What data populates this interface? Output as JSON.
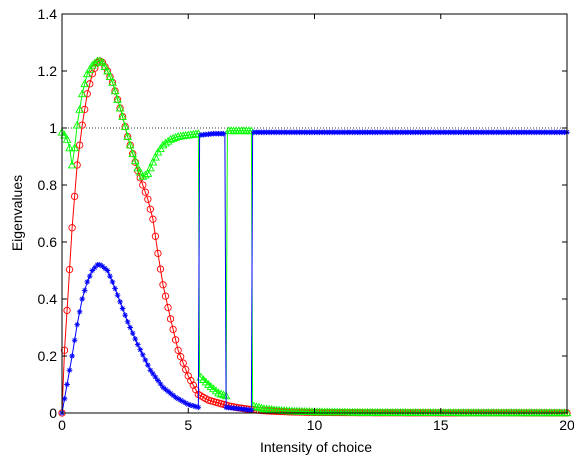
{
  "chart_data": {
    "type": "line",
    "title": "",
    "xlabel": "Intensity of choice",
    "ylabel": "Eigenvalues",
    "xlim": [
      0,
      20
    ],
    "ylim": [
      0,
      1.4
    ],
    "xticks": [
      0,
      5,
      10,
      15,
      20
    ],
    "yticks": [
      0,
      0.2,
      0.4,
      0.6,
      0.8,
      1,
      1.2,
      1.4
    ],
    "xtick_labels": [
      "0",
      "5",
      "10",
      "15",
      "20"
    ],
    "ytick_labels": [
      "0",
      "0.2",
      "0.4",
      "0.6",
      "0.8",
      "1",
      "1.2",
      "1.4"
    ],
    "grid": false,
    "legend": "none",
    "reference_line": {
      "y": 1,
      "style": "dotted",
      "color": "#000000"
    },
    "series": [
      {
        "color": "#ff0000",
        "marker": "circle",
        "x": [
          0,
          0.1,
          0.25,
          0.4,
          0.6,
          0.8,
          1.0,
          1.2,
          1.4,
          1.5,
          1.6,
          1.8,
          2.0,
          2.2,
          2.4,
          2.6,
          2.8,
          3.0,
          3.2,
          3.4,
          3.6,
          3.8,
          4.0,
          4.3,
          4.6,
          5.0,
          5.4,
          5.8,
          6.2,
          6.6,
          7.0,
          7.5,
          8.0,
          9.0,
          10.0,
          12.0,
          15.0,
          20.0
        ],
        "y": [
          0,
          0.22,
          0.43,
          0.65,
          0.87,
          1.01,
          1.12,
          1.19,
          1.23,
          1.235,
          1.23,
          1.2,
          1.16,
          1.1,
          1.04,
          0.97,
          0.91,
          0.85,
          0.8,
          0.75,
          0.68,
          0.56,
          0.45,
          0.33,
          0.22,
          0.13,
          0.065,
          0.045,
          0.035,
          0.025,
          0.018,
          0.012,
          0.008,
          0.004,
          0.002,
          0.001,
          0.0005,
          0.0002
        ]
      },
      {
        "color": "#00ff00",
        "marker": "triangle",
        "x": [
          0,
          0.1,
          0.2,
          0.3,
          0.4,
          0.5,
          0.6,
          0.8,
          1.0,
          1.2,
          1.4,
          1.5,
          1.6,
          1.8,
          2.0,
          2.2,
          2.4,
          2.6,
          2.8,
          3.0,
          3.2,
          3.4,
          3.6,
          3.8,
          4.0,
          4.3,
          4.6,
          5.0,
          5.4,
          5.45,
          5.8,
          6.2,
          6.5,
          6.55,
          7.0,
          7.5,
          7.55,
          8.0,
          8.5,
          9.0,
          10.0,
          12.0,
          15.0,
          20.0
        ],
        "y": [
          0.985,
          0.975,
          0.96,
          0.93,
          0.87,
          0.93,
          1.01,
          1.12,
          1.19,
          1.22,
          1.235,
          1.235,
          1.23,
          1.2,
          1.16,
          1.1,
          1.04,
          0.97,
          0.91,
          0.86,
          0.83,
          0.84,
          0.88,
          0.915,
          0.94,
          0.96,
          0.97,
          0.975,
          0.98,
          0.13,
          0.1,
          0.07,
          0.06,
          0.99,
          0.99,
          0.99,
          0.025,
          0.015,
          0.01,
          0.007,
          0.004,
          0.002,
          0.001,
          0.0005
        ]
      },
      {
        "color": "#0000ff",
        "marker": "asterisk",
        "x": [
          0,
          0.1,
          0.2,
          0.4,
          0.6,
          0.8,
          1.0,
          1.2,
          1.4,
          1.5,
          1.6,
          1.8,
          2.0,
          2.3,
          2.6,
          3.0,
          3.5,
          4.0,
          4.5,
          5.0,
          5.4,
          5.45,
          6.0,
          6.45,
          6.5,
          7.0,
          7.5,
          7.55,
          8.0,
          10.0,
          12.0,
          15.0,
          20.0
        ],
        "y": [
          0,
          0.05,
          0.1,
          0.2,
          0.31,
          0.4,
          0.46,
          0.5,
          0.52,
          0.52,
          0.515,
          0.5,
          0.46,
          0.39,
          0.32,
          0.24,
          0.15,
          0.09,
          0.055,
          0.03,
          0.02,
          0.975,
          0.98,
          0.98,
          0.02,
          0.015,
          0.01,
          0.985,
          0.985,
          0.985,
          0.985,
          0.985,
          0.985
        ]
      }
    ]
  }
}
